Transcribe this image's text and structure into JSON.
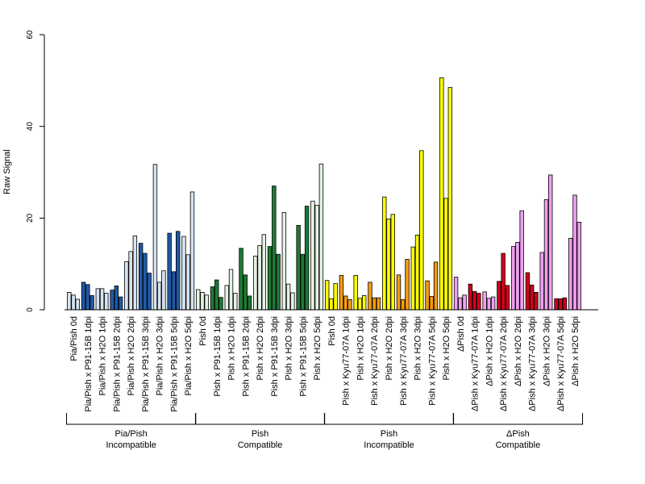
{
  "chart_data": {
    "type": "bar",
    "title": "",
    "xlabel": "",
    "ylabel": "Raw Signal",
    "ylim": [
      0,
      60
    ],
    "yticks": [
      0,
      20,
      40,
      60
    ],
    "grid": false,
    "legend": "none",
    "categories": [
      "Pia/Pish 0d",
      "Pia/Pish x P91-15B 1dpi",
      "Pia/Pish x H2O 1dpi",
      "Pia/Pish x P91-15B 2dpi",
      "Pia/Pish x H2O 2dpi",
      "Pia/Pish x P91-15B 3dpi",
      "Pia/Pish x H2O 3dpi",
      "Pia/Pish x P91-15B 5dpi",
      "Pia/Pish x H2O 5dpi",
      "Pish 0d",
      "Pish x P91-15B 1dpi",
      "Pish x H2O 1dpi",
      "Pish x P91-15B 2dpi",
      "Pish x H2O 2dpi",
      "Pish x P91-15B 3dpi",
      "Pish x H2O 3dpi",
      "Pish x P91-15B 5dpi",
      "Pish x H2O 5dpi",
      "Pish 0d",
      "Pish x Kyu77-07A 1dpi",
      "Pish x H2O 1dpi",
      "Pish x Kyu77-07A 2dpi",
      "Pish x H2O 2dpi",
      "Pish x Kyu77-07A 3dpi",
      "Pish x H2O 3dpi",
      "Pish x Kyu77-07A 5dpi",
      "Pish x H2O 5dpi",
      "ΔPish 0d",
      "ΔPish x Kyu77-07A 1dpi",
      "ΔPish x H2O 1dpi",
      "ΔPish x Kyu77-07A 2dpi",
      "ΔPish x H2O 2dpi",
      "ΔPish x Kyu77-07A 3dpi",
      "ΔPish x H2O 3dpi",
      "ΔPish x Kyu77-07A 5dpi",
      "ΔPish x H2O 5dpi"
    ],
    "replicates_per_category": 3,
    "values": [
      [
        3.8,
        3.2,
        2.3
      ],
      [
        6.0,
        5.5,
        3.1
      ],
      [
        4.6,
        4.6,
        3.6
      ],
      [
        4.3,
        5.2,
        2.8
      ],
      [
        10.5,
        12.7,
        16.1
      ],
      [
        14.5,
        12.3,
        8.0
      ],
      [
        31.7,
        6.0,
        8.5
      ],
      [
        16.7,
        8.3,
        17.1
      ],
      [
        16.0,
        12.0,
        25.7
      ],
      [
        4.4,
        3.8,
        3.2
      ],
      [
        5.0,
        6.5,
        2.7
      ],
      [
        5.3,
        8.8,
        3.6
      ],
      [
        13.4,
        7.6,
        3.0
      ],
      [
        11.7,
        14.0,
        16.4
      ],
      [
        13.8,
        27.0,
        12.1
      ],
      [
        21.2,
        5.6,
        3.7
      ],
      [
        18.4,
        12.1,
        22.6
      ],
      [
        23.7,
        22.8,
        31.8
      ],
      [
        6.4,
        2.4,
        5.7
      ],
      [
        7.5,
        3.0,
        2.2
      ],
      [
        7.5,
        2.5,
        3.1
      ],
      [
        6.0,
        2.6,
        2.6
      ],
      [
        24.6,
        19.8,
        20.8
      ],
      [
        7.6,
        2.2,
        11.0
      ],
      [
        13.7,
        16.3,
        34.7
      ],
      [
        6.3,
        2.9,
        10.4
      ],
      [
        50.6,
        24.3,
        48.5
      ],
      [
        7.1,
        2.6,
        3.2
      ],
      [
        5.6,
        4.0,
        3.6
      ],
      [
        3.9,
        2.5,
        2.8
      ],
      [
        6.2,
        12.3,
        5.3
      ],
      [
        13.8,
        14.7,
        21.6
      ],
      [
        8.1,
        5.4,
        3.8
      ],
      [
        12.5,
        24.0,
        29.4
      ],
      [
        2.4,
        2.4,
        2.6
      ],
      [
        15.6,
        25.0,
        19.1
      ]
    ],
    "groups": [
      {
        "line1": "Pia/Pish",
        "line2": "Incompatible",
        "first": 0,
        "last": 8
      },
      {
        "line1": "Pish",
        "line2": "Compatible",
        "first": 9,
        "last": 17
      },
      {
        "line1": "Pish",
        "line2": "Incompatible",
        "first": 18,
        "last": 26
      },
      {
        "line1": "ΔPish",
        "line2": "Compatible",
        "first": 27,
        "last": 35
      }
    ],
    "colors": {
      "Pia/Pish": {
        "pathogen": "#1f5aa6",
        "control": "#d6e3f0"
      },
      "Pish Compatible": {
        "pathogen": "#1e7a34",
        "control": "#e4f2e4"
      },
      "Pish Incompatible": {
        "pathogen_1_2dpi": "#f39c12",
        "yellow": "#ffff00"
      },
      "ΔPish": {
        "pathogen": "#d0021b",
        "control": "#ef9ff0"
      }
    },
    "bar_fills": [
      "#d6e3f0",
      "#1f5aa6",
      "#d6e3f0",
      "#1f5aa6",
      "#d6e3f0",
      "#1f5aa6",
      "#d6e3f0",
      "#1f5aa6",
      "#d6e3f0",
      "#e4f2e4",
      "#1e7a34",
      "#e4f2e4",
      "#1e7a34",
      "#e4f2e4",
      "#1e7a34",
      "#e4f2e4",
      "#1e7a34",
      "#e4f2e4",
      "#ffff00",
      "#f39c12",
      "#ffff00",
      "#f39c12",
      "#ffff00",
      "#f39c12",
      "#ffff00",
      "#f39c12",
      "#ffff00",
      "#ef9ff0",
      "#d0021b",
      "#ef9ff0",
      "#d0021b",
      "#ef9ff0",
      "#d0021b",
      "#ef9ff0",
      "#d0021b",
      "#ef9ff0"
    ]
  }
}
